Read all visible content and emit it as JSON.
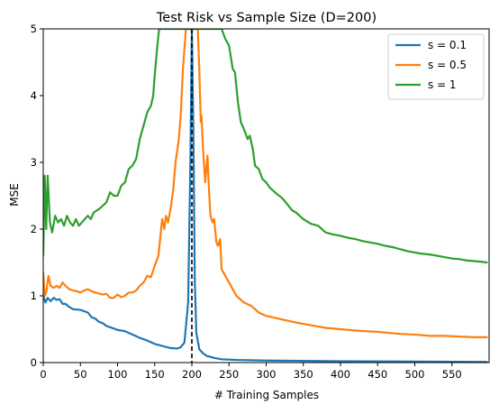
{
  "chart_data": {
    "type": "line",
    "title": "Test Risk vs Sample Size (D=200)",
    "xlabel": "# Training Samples",
    "ylabel": "MSE",
    "xlim": [
      0,
      600
    ],
    "ylim": [
      0,
      5
    ],
    "x_ticks": [
      0,
      50,
      100,
      150,
      200,
      250,
      300,
      350,
      400,
      450,
      500,
      550
    ],
    "y_ticks": [
      0,
      1,
      2,
      3,
      4,
      5
    ],
    "grid": false,
    "legend_position": "top-right",
    "vline": {
      "x": 200,
      "style": "dashed",
      "color": "#000000"
    },
    "series": [
      {
        "name": "s = 0.1",
        "color": "#1f77b4",
        "points": [
          [
            0,
            1.0
          ],
          [
            3,
            0.9
          ],
          [
            6,
            0.97
          ],
          [
            10,
            0.92
          ],
          [
            14,
            0.97
          ],
          [
            18,
            0.94
          ],
          [
            22,
            0.95
          ],
          [
            26,
            0.88
          ],
          [
            30,
            0.88
          ],
          [
            34,
            0.84
          ],
          [
            40,
            0.8
          ],
          [
            50,
            0.79
          ],
          [
            60,
            0.75
          ],
          [
            65,
            0.68
          ],
          [
            70,
            0.66
          ],
          [
            75,
            0.61
          ],
          [
            80,
            0.59
          ],
          [
            85,
            0.55
          ],
          [
            90,
            0.53
          ],
          [
            100,
            0.49
          ],
          [
            110,
            0.47
          ],
          [
            120,
            0.42
          ],
          [
            130,
            0.37
          ],
          [
            140,
            0.33
          ],
          [
            150,
            0.28
          ],
          [
            160,
            0.25
          ],
          [
            170,
            0.22
          ],
          [
            180,
            0.21
          ],
          [
            185,
            0.23
          ],
          [
            190,
            0.3
          ],
          [
            195,
            0.9
          ],
          [
            198,
            3.0
          ],
          [
            200,
            5.0
          ],
          [
            202,
            3.5
          ],
          [
            204,
            1.2
          ],
          [
            206,
            0.45
          ],
          [
            210,
            0.2
          ],
          [
            215,
            0.14
          ],
          [
            220,
            0.1
          ],
          [
            230,
            0.07
          ],
          [
            240,
            0.05
          ],
          [
            260,
            0.04
          ],
          [
            300,
            0.03
          ],
          [
            400,
            0.02
          ],
          [
            500,
            0.015
          ],
          [
            597,
            0.01
          ]
        ]
      },
      {
        "name": "s = 0.5",
        "color": "#ff7f0e",
        "points": [
          [
            0,
            1.35
          ],
          [
            2,
            1.0
          ],
          [
            4,
            1.05
          ],
          [
            7,
            1.3
          ],
          [
            10,
            1.15
          ],
          [
            14,
            1.12
          ],
          [
            18,
            1.15
          ],
          [
            22,
            1.12
          ],
          [
            26,
            1.2
          ],
          [
            30,
            1.15
          ],
          [
            35,
            1.1
          ],
          [
            40,
            1.08
          ],
          [
            45,
            1.07
          ],
          [
            50,
            1.05
          ],
          [
            55,
            1.08
          ],
          [
            60,
            1.1
          ],
          [
            65,
            1.07
          ],
          [
            70,
            1.05
          ],
          [
            80,
            1.02
          ],
          [
            85,
            1.03
          ],
          [
            90,
            0.97
          ],
          [
            95,
            0.97
          ],
          [
            100,
            1.02
          ],
          [
            105,
            0.98
          ],
          [
            110,
            1.0
          ],
          [
            115,
            1.05
          ],
          [
            120,
            1.05
          ],
          [
            125,
            1.08
          ],
          [
            130,
            1.15
          ],
          [
            135,
            1.2
          ],
          [
            140,
            1.3
          ],
          [
            145,
            1.28
          ],
          [
            150,
            1.45
          ],
          [
            155,
            1.6
          ],
          [
            160,
            2.15
          ],
          [
            163,
            2.0
          ],
          [
            165,
            2.2
          ],
          [
            168,
            2.1
          ],
          [
            172,
            2.35
          ],
          [
            175,
            2.6
          ],
          [
            178,
            3.0
          ],
          [
            182,
            3.3
          ],
          [
            185,
            3.7
          ],
          [
            188,
            4.4
          ],
          [
            192,
            5.0
          ],
          [
            208,
            5.0
          ],
          [
            210,
            4.4
          ],
          [
            212,
            3.6
          ],
          [
            213,
            3.7
          ],
          [
            215,
            3.2
          ],
          [
            218,
            2.7
          ],
          [
            221,
            3.1
          ],
          [
            223,
            2.6
          ],
          [
            225,
            2.2
          ],
          [
            228,
            2.1
          ],
          [
            230,
            2.15
          ],
          [
            233,
            1.8
          ],
          [
            235,
            1.75
          ],
          [
            238,
            1.85
          ],
          [
            240,
            1.4
          ],
          [
            245,
            1.3
          ],
          [
            250,
            1.2
          ],
          [
            260,
            1.0
          ],
          [
            270,
            0.9
          ],
          [
            280,
            0.85
          ],
          [
            290,
            0.75
          ],
          [
            300,
            0.7
          ],
          [
            320,
            0.65
          ],
          [
            340,
            0.6
          ],
          [
            360,
            0.56
          ],
          [
            380,
            0.52
          ],
          [
            400,
            0.5
          ],
          [
            420,
            0.48
          ],
          [
            450,
            0.46
          ],
          [
            480,
            0.43
          ],
          [
            500,
            0.42
          ],
          [
            520,
            0.4
          ],
          [
            540,
            0.4
          ],
          [
            560,
            0.39
          ],
          [
            580,
            0.38
          ],
          [
            597,
            0.38
          ]
        ]
      },
      {
        "name": "s = 1",
        "color": "#2ca02c",
        "points": [
          [
            0,
            1.6
          ],
          [
            2,
            2.8
          ],
          [
            4,
            2.0
          ],
          [
            6,
            2.8
          ],
          [
            9,
            2.1
          ],
          [
            12,
            1.95
          ],
          [
            16,
            2.2
          ],
          [
            20,
            2.1
          ],
          [
            24,
            2.15
          ],
          [
            28,
            2.05
          ],
          [
            32,
            2.2
          ],
          [
            36,
            2.1
          ],
          [
            40,
            2.05
          ],
          [
            44,
            2.15
          ],
          [
            48,
            2.05
          ],
          [
            52,
            2.1
          ],
          [
            56,
            2.15
          ],
          [
            60,
            2.2
          ],
          [
            64,
            2.15
          ],
          [
            68,
            2.25
          ],
          [
            75,
            2.3
          ],
          [
            80,
            2.35
          ],
          [
            85,
            2.4
          ],
          [
            90,
            2.55
          ],
          [
            95,
            2.5
          ],
          [
            100,
            2.5
          ],
          [
            105,
            2.65
          ],
          [
            110,
            2.7
          ],
          [
            115,
            2.9
          ],
          [
            120,
            2.95
          ],
          [
            125,
            3.05
          ],
          [
            130,
            3.35
          ],
          [
            135,
            3.55
          ],
          [
            140,
            3.75
          ],
          [
            145,
            3.85
          ],
          [
            148,
            4.0
          ],
          [
            150,
            4.3
          ],
          [
            154,
            4.8
          ],
          [
            156,
            5.0
          ],
          [
            240,
            5.0
          ],
          [
            245,
            4.85
          ],
          [
            250,
            4.75
          ],
          [
            255,
            4.4
          ],
          [
            258,
            4.35
          ],
          [
            262,
            3.9
          ],
          [
            266,
            3.6
          ],
          [
            270,
            3.5
          ],
          [
            275,
            3.35
          ],
          [
            278,
            3.4
          ],
          [
            282,
            3.2
          ],
          [
            285,
            2.95
          ],
          [
            290,
            2.9
          ],
          [
            295,
            2.75
          ],
          [
            300,
            2.7
          ],
          [
            305,
            2.62
          ],
          [
            310,
            2.57
          ],
          [
            315,
            2.52
          ],
          [
            320,
            2.48
          ],
          [
            325,
            2.42
          ],
          [
            330,
            2.35
          ],
          [
            335,
            2.28
          ],
          [
            340,
            2.25
          ],
          [
            350,
            2.15
          ],
          [
            360,
            2.08
          ],
          [
            370,
            2.05
          ],
          [
            375,
            2.0
          ],
          [
            380,
            1.95
          ],
          [
            390,
            1.92
          ],
          [
            400,
            1.9
          ],
          [
            410,
            1.87
          ],
          [
            420,
            1.85
          ],
          [
            430,
            1.82
          ],
          [
            440,
            1.8
          ],
          [
            450,
            1.78
          ],
          [
            460,
            1.75
          ],
          [
            470,
            1.73
          ],
          [
            480,
            1.7
          ],
          [
            490,
            1.67
          ],
          [
            500,
            1.65
          ],
          [
            510,
            1.63
          ],
          [
            520,
            1.62
          ],
          [
            530,
            1.6
          ],
          [
            540,
            1.58
          ],
          [
            550,
            1.56
          ],
          [
            560,
            1.55
          ],
          [
            570,
            1.53
          ],
          [
            580,
            1.52
          ],
          [
            590,
            1.51
          ],
          [
            597,
            1.5
          ]
        ]
      }
    ]
  }
}
